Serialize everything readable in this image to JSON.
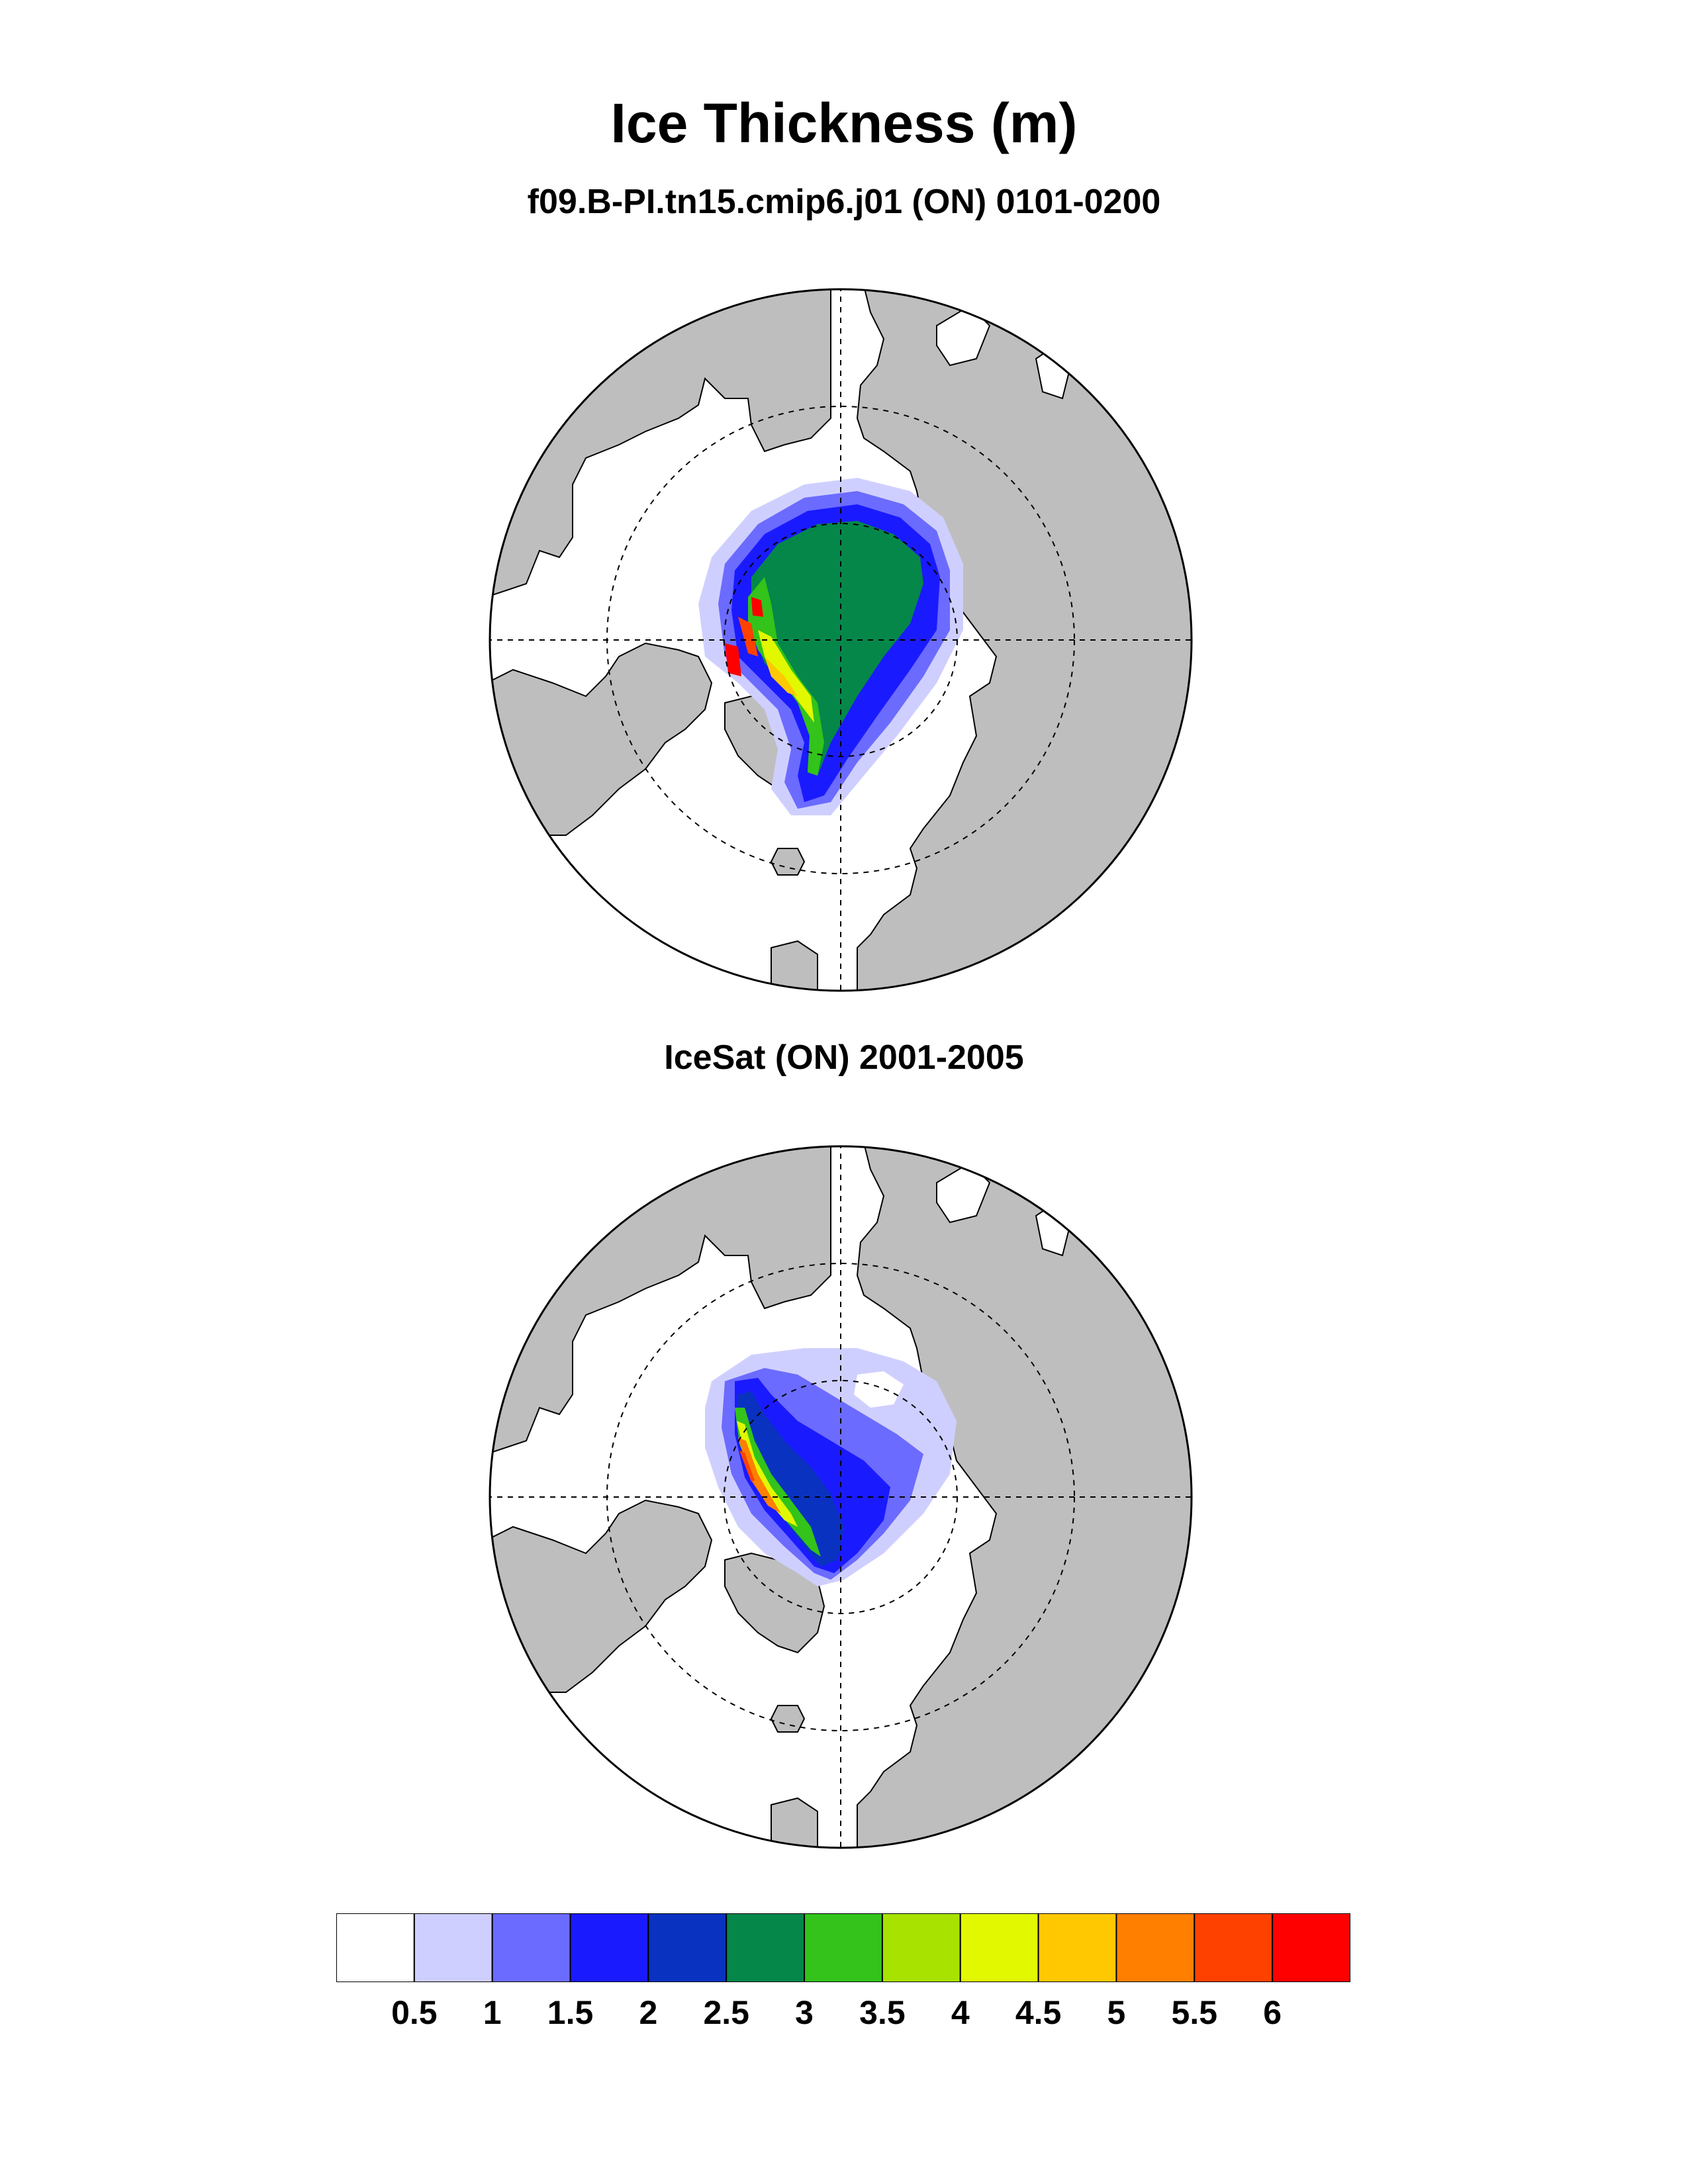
{
  "title": "Ice Thickness (m)",
  "panels": [
    {
      "subtitle": "f09.B-PI.tn15.cmip6.j01 (ON) 0101-0200"
    },
    {
      "subtitle": "IceSat (ON) 2001-2005"
    }
  ],
  "colors": {
    "land": "#bebebe",
    "levels": [
      "#ffffff",
      "#cfcfff",
      "#6b6bff",
      "#1a1aff",
      "#0a32c0",
      "#05874a",
      "#33c31a",
      "#a8e200",
      "#e1f800",
      "#ffc800",
      "#ff7f00",
      "#ff4100",
      "#ff0000"
    ]
  },
  "colorbar": {
    "labels": [
      "0.5",
      "1",
      "1.5",
      "2",
      "2.5",
      "3",
      "3.5",
      "4",
      "4.5",
      "5",
      "5.5",
      "6"
    ]
  }
}
